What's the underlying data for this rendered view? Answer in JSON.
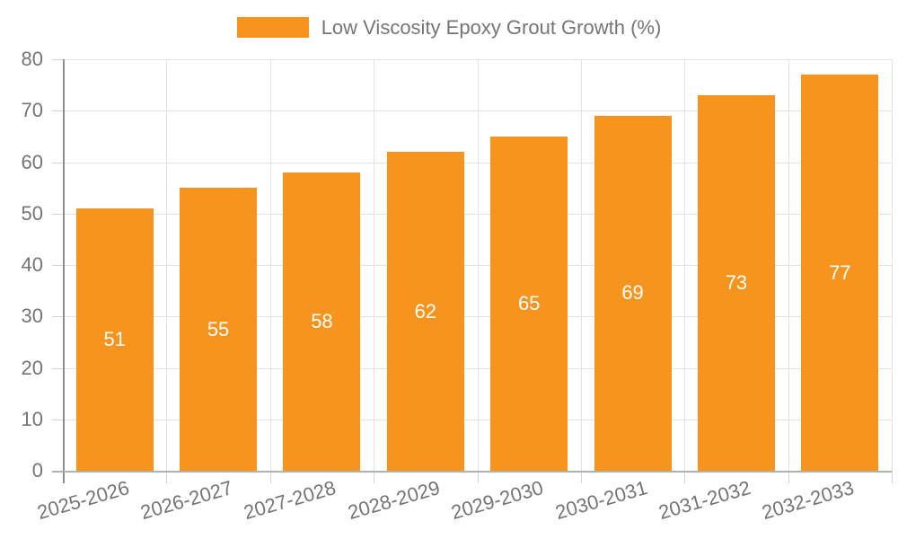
{
  "legend": {
    "label": "Low Viscosity Epoxy Grout Growth (%)"
  },
  "colors": {
    "bar": "#F7941E",
    "axis_text": "#757575",
    "bar_label_text": "#FFFFFF",
    "gridline": "#E3E3E3",
    "y_axis_line": "#8F8F8F",
    "x_axis_line": "#B0B0B0"
  },
  "chart_data": {
    "type": "bar",
    "title": "",
    "xlabel": "",
    "ylabel": "",
    "categories": [
      "2025-2026",
      "2026-2027",
      "2027-2028",
      "2028-2029",
      "2029-2030",
      "2030-2031",
      "2031-2032",
      "2032-2033"
    ],
    "series": [
      {
        "name": "Low Viscosity Epoxy Grout Growth (%)",
        "values": [
          51,
          55,
          58,
          62,
          65,
          69,
          73,
          77
        ]
      }
    ],
    "bar_value_labels": [
      "51",
      "55",
      "58",
      "62",
      "65",
      "69",
      "73",
      "77"
    ],
    "ylim": [
      0,
      80
    ],
    "ytick_step": 10,
    "ytick_labels": [
      "0",
      "10",
      "20",
      "30",
      "40",
      "50",
      "60",
      "70",
      "80"
    ],
    "grid": true,
    "legend_position": "top"
  }
}
